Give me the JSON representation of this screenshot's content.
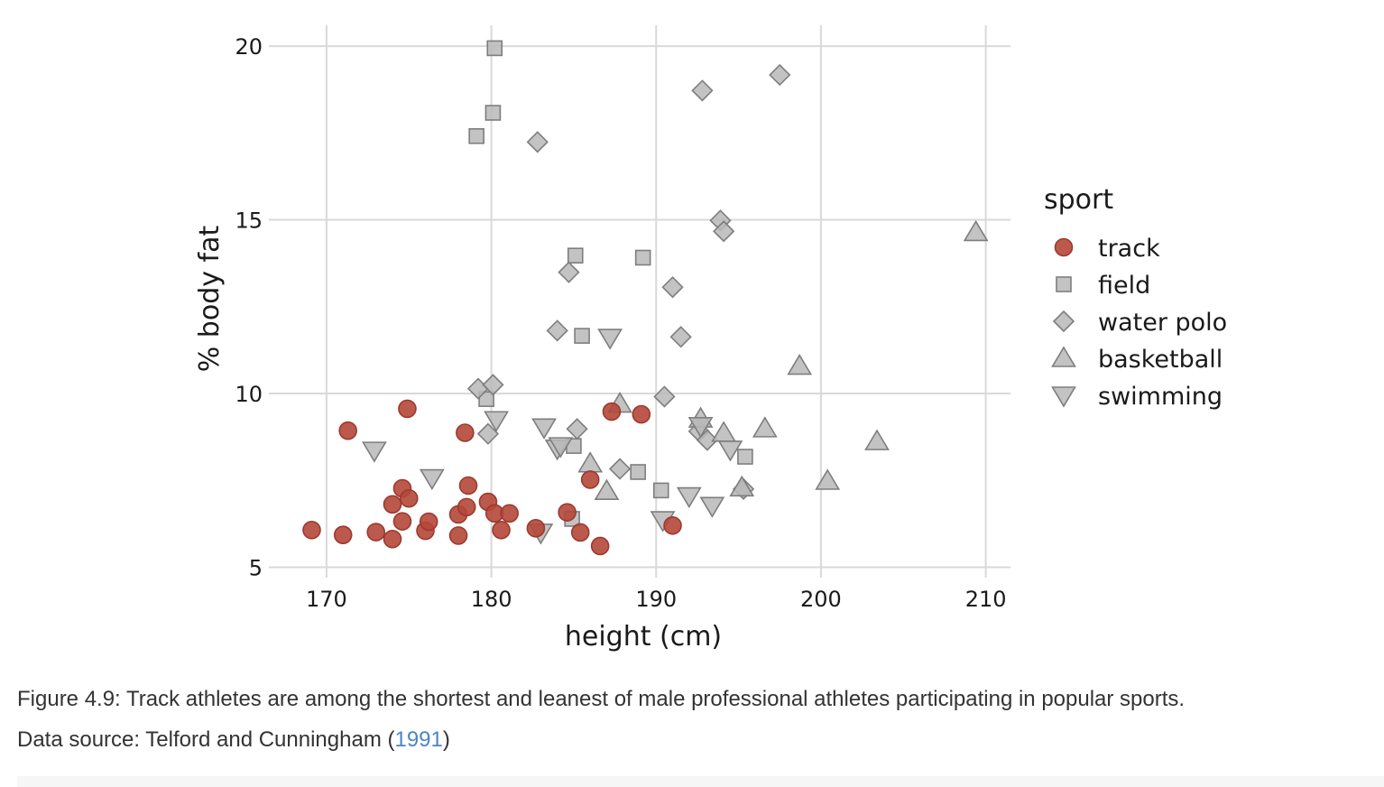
{
  "chart_data": {
    "type": "scatter",
    "xlabel": "height (cm)",
    "ylabel": "% body fat",
    "xlim": [
      166.5,
      211.5
    ],
    "ylim": [
      4.7,
      20.6
    ],
    "xticks": [
      170,
      180,
      190,
      200,
      210
    ],
    "yticks": [
      5,
      10,
      15,
      20
    ],
    "grid": true,
    "legend": {
      "title": "sport",
      "position": "right",
      "entries": [
        "track",
        "field",
        "water polo",
        "basketball",
        "swimming"
      ]
    },
    "series": [
      {
        "name": "track",
        "marker": "circle",
        "color": "#b5473a",
        "points": [
          [
            169.1,
            6.07
          ],
          [
            171.0,
            5.93
          ],
          [
            171.3,
            8.93
          ],
          [
            173.0,
            6.01
          ],
          [
            174.0,
            5.81
          ],
          [
            174.0,
            6.81
          ],
          [
            174.6,
            7.27
          ],
          [
            174.6,
            6.32
          ],
          [
            174.9,
            9.56
          ],
          [
            175.0,
            6.98
          ],
          [
            176.0,
            6.05
          ],
          [
            176.2,
            6.31
          ],
          [
            178.0,
            6.52
          ],
          [
            178.0,
            5.91
          ],
          [
            178.4,
            8.87
          ],
          [
            178.5,
            6.73
          ],
          [
            178.6,
            7.35
          ],
          [
            179.8,
            6.88
          ],
          [
            180.2,
            6.55
          ],
          [
            180.6,
            6.07
          ],
          [
            181.1,
            6.55
          ],
          [
            182.7,
            6.12
          ],
          [
            184.6,
            6.58
          ],
          [
            185.4,
            6.0
          ],
          [
            186.0,
            7.52
          ],
          [
            186.6,
            5.61
          ],
          [
            187.3,
            9.48
          ],
          [
            189.1,
            9.4
          ],
          [
            191.0,
            6.2
          ]
        ]
      },
      {
        "name": "field",
        "marker": "square",
        "color": "#b8b8b8",
        "points": [
          [
            179.1,
            17.41
          ],
          [
            180.1,
            18.08
          ],
          [
            180.2,
            19.94
          ],
          [
            179.7,
            9.84
          ],
          [
            184.9,
            6.39
          ],
          [
            185.0,
            8.49
          ],
          [
            185.1,
            13.97
          ],
          [
            185.5,
            11.66
          ],
          [
            188.9,
            7.74
          ],
          [
            189.2,
            13.91
          ],
          [
            190.3,
            7.21
          ],
          [
            195.4,
            8.18
          ]
        ]
      },
      {
        "name": "water polo",
        "marker": "diamond",
        "color": "#b8b8b8",
        "points": [
          [
            179.2,
            10.14
          ],
          [
            179.8,
            8.84
          ],
          [
            180.1,
            10.25
          ],
          [
            182.8,
            17.24
          ],
          [
            184.0,
            11.81
          ],
          [
            184.7,
            13.49
          ],
          [
            185.2,
            8.98
          ],
          [
            187.8,
            7.83
          ],
          [
            190.5,
            9.91
          ],
          [
            191.0,
            13.06
          ],
          [
            191.5,
            11.63
          ],
          [
            192.6,
            8.91
          ],
          [
            192.8,
            18.72
          ],
          [
            193.1,
            8.66
          ],
          [
            193.9,
            14.98
          ],
          [
            194.1,
            14.67
          ],
          [
            195.3,
            7.25
          ],
          [
            197.5,
            19.17
          ]
        ]
      },
      {
        "name": "basketball",
        "marker": "triangle-up",
        "color": "#b8b8b8",
        "points": [
          [
            186.0,
            7.98
          ],
          [
            187.0,
            7.19
          ],
          [
            187.8,
            9.7
          ],
          [
            192.7,
            9.27
          ],
          [
            194.1,
            8.86
          ],
          [
            195.2,
            7.29
          ],
          [
            196.6,
            8.99
          ],
          [
            198.7,
            10.79
          ],
          [
            200.4,
            7.48
          ],
          [
            203.4,
            8.62
          ],
          [
            209.4,
            14.64
          ]
        ]
      },
      {
        "name": "swimming",
        "marker": "triangle-down",
        "color": "#b8b8b8",
        "points": [
          [
            172.9,
            8.36
          ],
          [
            176.4,
            7.57
          ],
          [
            180.3,
            9.24
          ],
          [
            183.0,
            6.0
          ],
          [
            183.2,
            9.03
          ],
          [
            184.0,
            8.42
          ],
          [
            184.2,
            8.49
          ],
          [
            187.2,
            11.61
          ],
          [
            190.4,
            6.36
          ],
          [
            192.0,
            7.05
          ],
          [
            192.7,
            9.07
          ],
          [
            193.4,
            6.77
          ],
          [
            194.5,
            8.39
          ]
        ]
      }
    ]
  },
  "caption": {
    "line1": "Figure 4.9: Track athletes are among the shortest and leanest of male professional athletes participating in popular sports.",
    "line2_prefix": "Data source: Telford and Cunningham (",
    "line2_link": "1991",
    "line2_suffix": ")"
  }
}
